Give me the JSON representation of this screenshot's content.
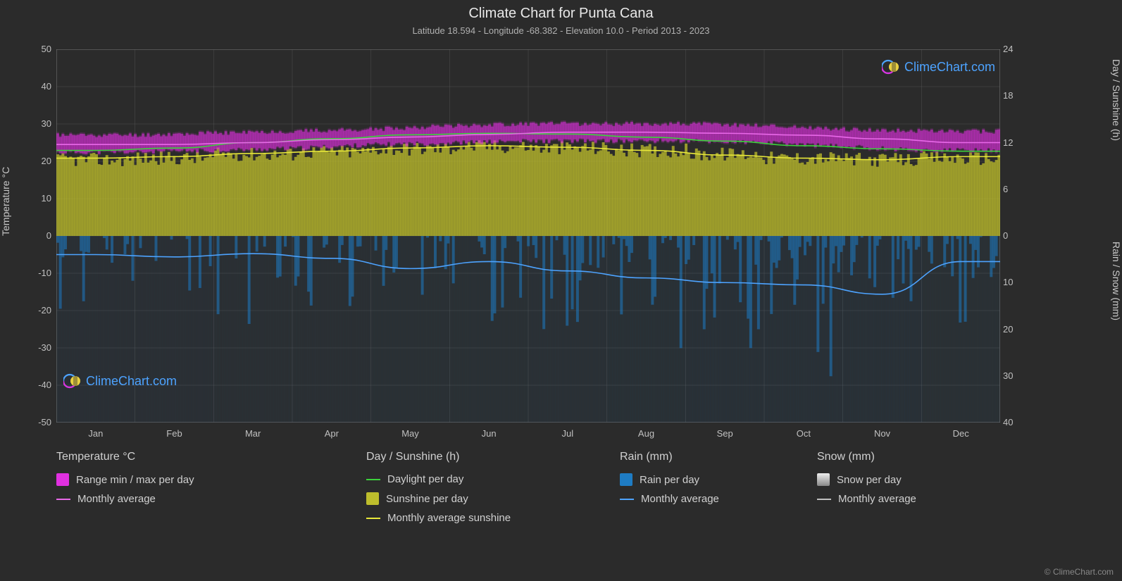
{
  "title": "Climate Chart for Punta Cana",
  "subtitle": "Latitude 18.594 - Longitude -68.382 - Elevation 10.0 - Period 2013 - 2023",
  "watermark_text": "ClimeChart.com",
  "copyright": "© ClimeChart.com",
  "axes": {
    "left_label": "Temperature °C",
    "right_label_top": "Day / Sunshine (h)",
    "right_label_bottom": "Rain / Snow (mm)",
    "left_ticks": [
      50,
      40,
      30,
      20,
      10,
      0,
      -10,
      -20,
      -30,
      -40,
      -50
    ],
    "right_top_ticks": [
      24,
      18,
      12,
      6,
      0
    ],
    "right_bottom_ticks": [
      0,
      10,
      20,
      30,
      40
    ],
    "months": [
      "Jan",
      "Feb",
      "Mar",
      "Apr",
      "May",
      "Jun",
      "Jul",
      "Aug",
      "Sep",
      "Oct",
      "Nov",
      "Dec"
    ]
  },
  "plot": {
    "left_ylim": [
      -50,
      50
    ],
    "right_top_ylim": [
      0,
      24
    ],
    "right_bottom_ylim": [
      0,
      40
    ],
    "background_color": "#2b2b2b",
    "grid_color": "#666666",
    "border_color": "#888888"
  },
  "series": {
    "temp_band": {
      "label": "Range min / max per day",
      "color": "#e030e0",
      "min_per_month": [
        22.5,
        22.5,
        23.0,
        23.5,
        24.5,
        25.0,
        25.5,
        25.5,
        25.5,
        25.0,
        24.0,
        23.0
      ],
      "max_per_month": [
        27.0,
        27.0,
        27.5,
        28.0,
        28.5,
        29.5,
        30.0,
        30.0,
        30.0,
        29.5,
        28.5,
        28.0
      ]
    },
    "temp_avg": {
      "label": "Monthly average",
      "color": "#e868e8",
      "values": [
        24.5,
        24.5,
        25.0,
        25.8,
        26.5,
        27.2,
        27.8,
        27.8,
        27.5,
        27.0,
        26.0,
        25.0
      ]
    },
    "daylight": {
      "label": "Daylight per day",
      "color": "#3cd23c",
      "values": [
        11.0,
        11.3,
        12.0,
        12.5,
        13.0,
        13.2,
        13.1,
        12.7,
        12.2,
        11.6,
        11.2,
        10.9
      ]
    },
    "sunshine_band": {
      "label": "Sunshine per day",
      "color": "#bdbd2c",
      "values": [
        9.8,
        10.0,
        10.5,
        10.8,
        11.2,
        11.5,
        11.3,
        11.0,
        10.5,
        10.0,
        9.8,
        10.0
      ]
    },
    "sunshine_avg": {
      "label": "Monthly average sunshine",
      "color": "#e8e83a",
      "values": [
        10.0,
        10.2,
        10.6,
        10.9,
        11.3,
        11.6,
        11.4,
        11.0,
        10.4,
        10.0,
        9.8,
        10.2
      ]
    },
    "rain_daily": {
      "label": "Rain per day",
      "color": "#1e7cc4",
      "background_intensity": [
        0.15,
        0.15,
        0.12,
        0.14,
        0.2,
        0.18,
        0.22,
        0.25,
        0.28,
        0.3,
        0.3,
        0.2
      ]
    },
    "rain_avg": {
      "label": "Monthly average",
      "color": "#4da3ff",
      "values": [
        4.0,
        4.5,
        3.8,
        4.8,
        7.0,
        5.5,
        7.5,
        9.0,
        10.0,
        10.5,
        12.5,
        5.5
      ]
    },
    "snow_daily": {
      "label": "Snow per day",
      "color": "#d0d0d0"
    },
    "snow_avg": {
      "label": "Monthly average",
      "color": "#c0c0c0"
    }
  },
  "legend": {
    "col1": {
      "header": "Temperature °C"
    },
    "col2": {
      "header": "Day / Sunshine (h)"
    },
    "col3": {
      "header": "Rain (mm)"
    },
    "col4": {
      "header": "Snow (mm)"
    }
  },
  "logo_colors": {
    "ring1": "#4da3ff",
    "ring2": "#e030e0",
    "sun": "#e8d040"
  }
}
